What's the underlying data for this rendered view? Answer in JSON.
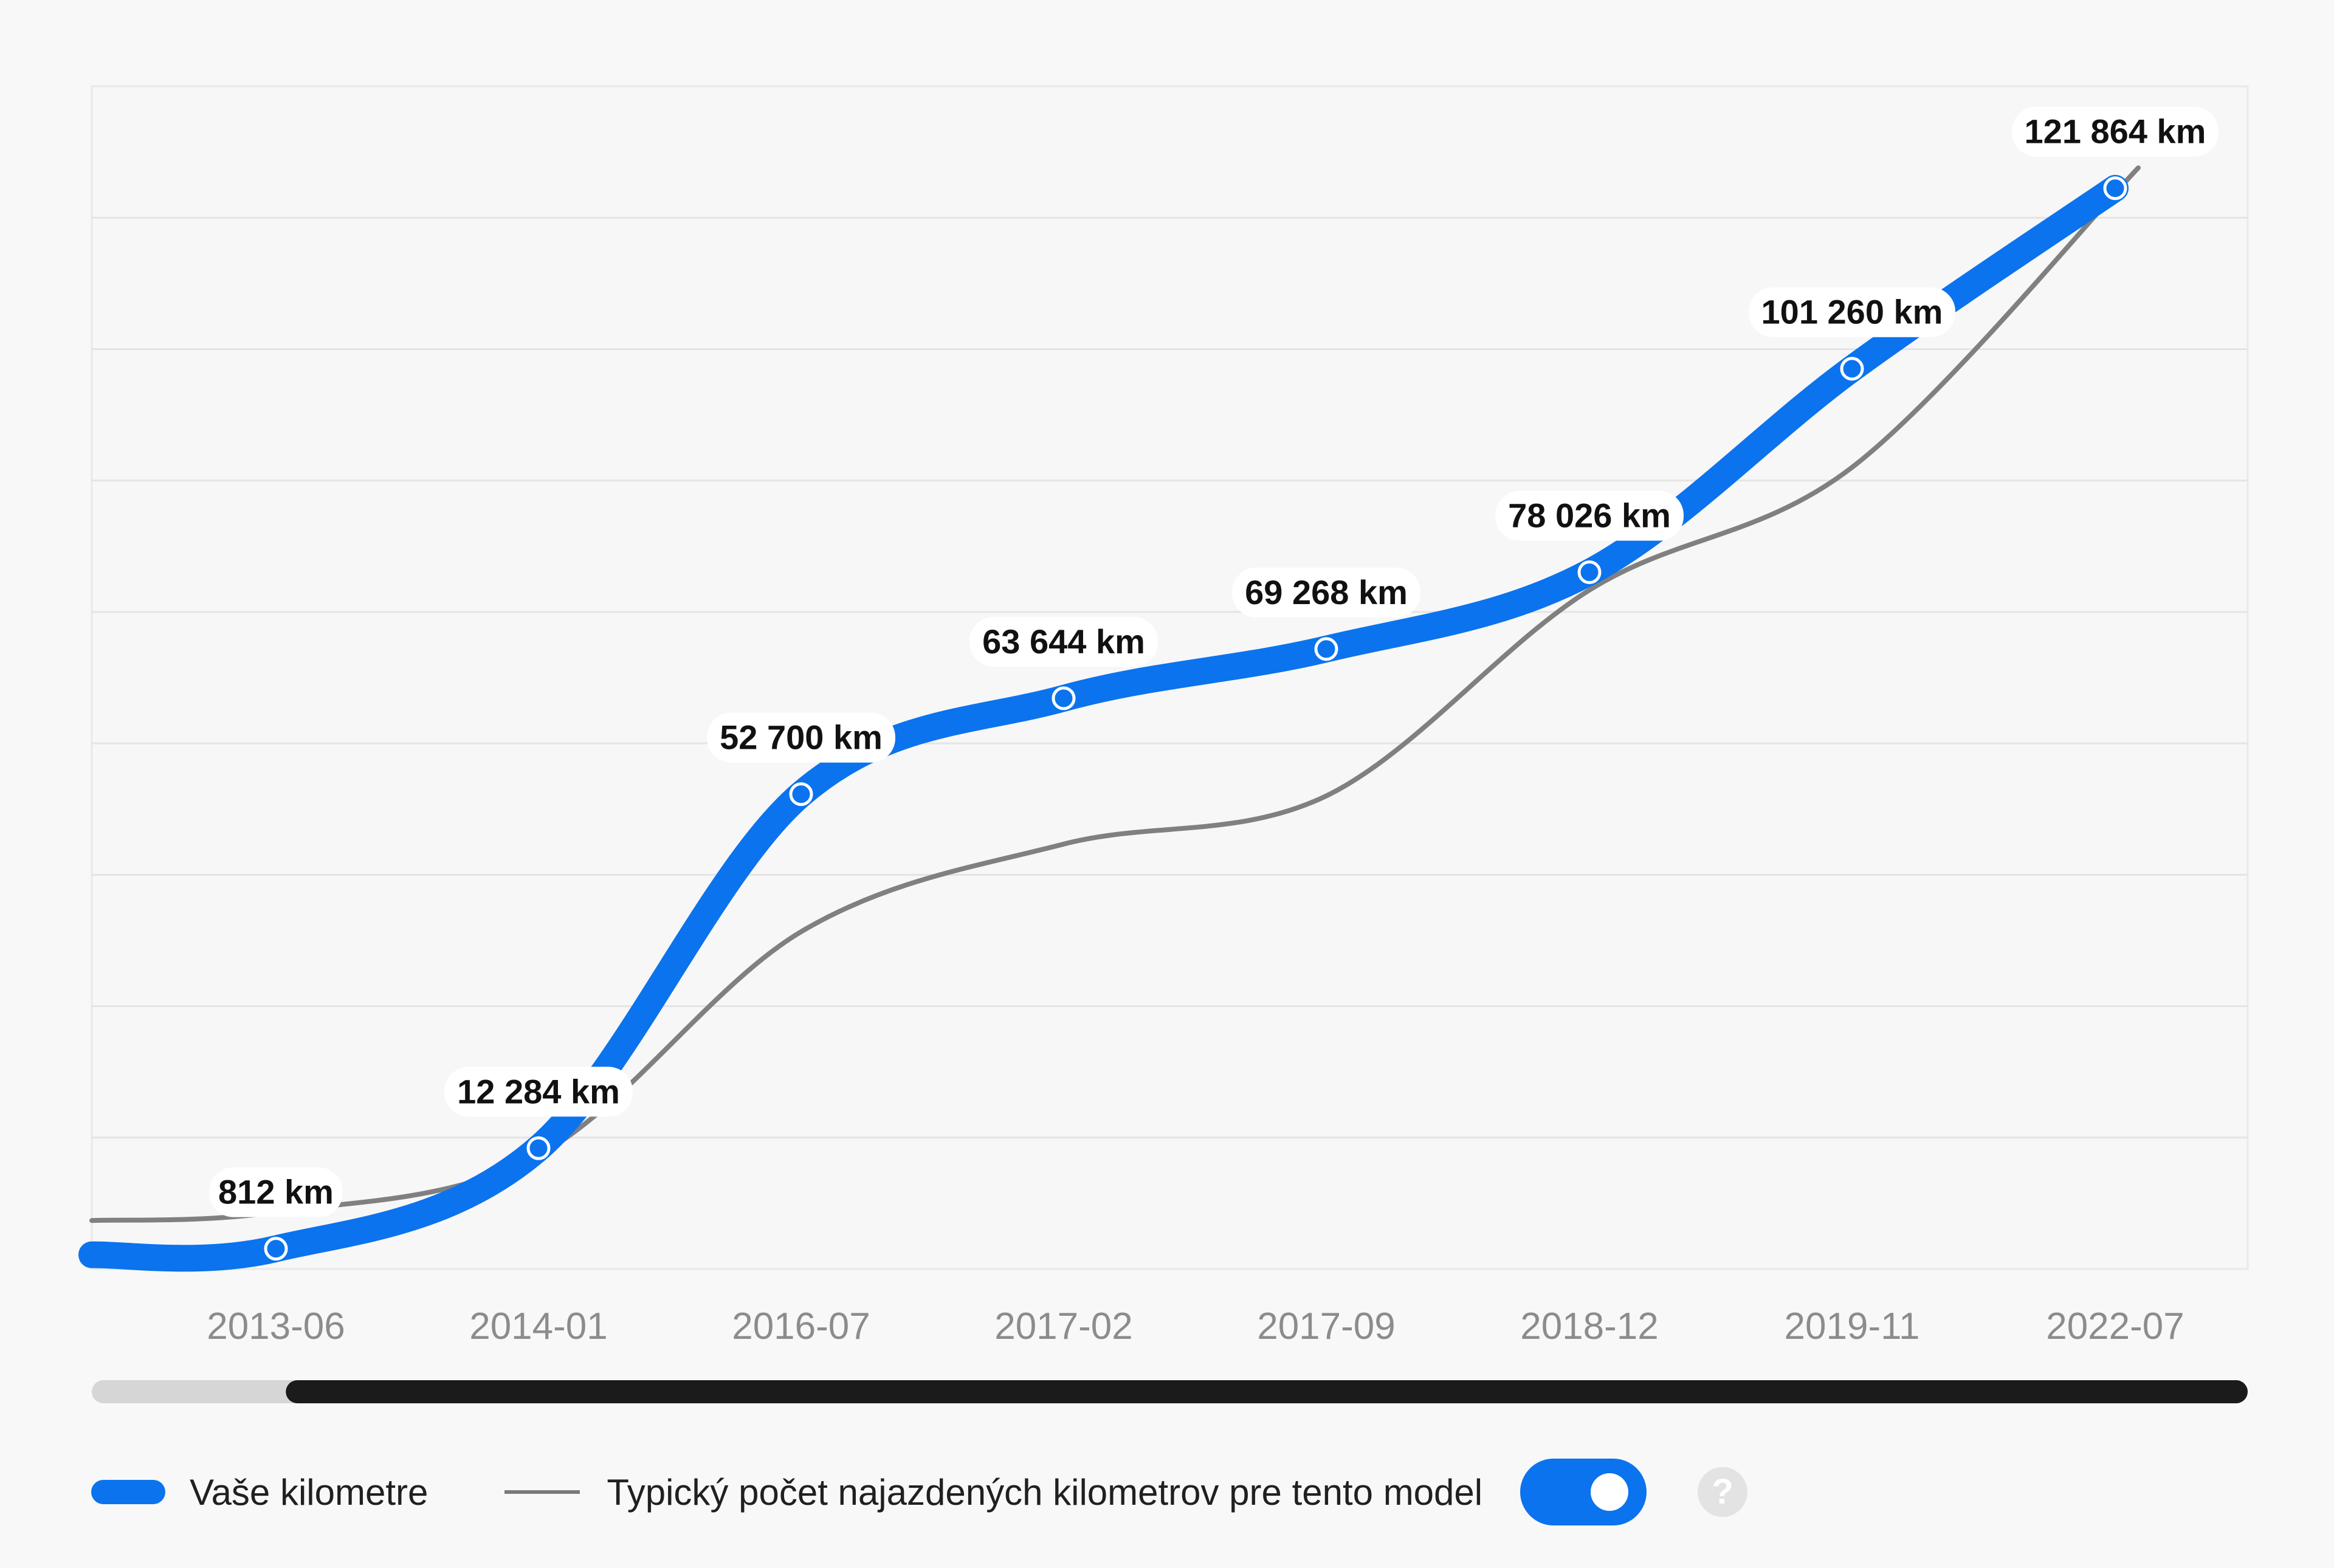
{
  "chart_data": {
    "type": "line",
    "title": "",
    "xlabel": "",
    "ylabel": "",
    "categories": [
      "2013-06",
      "2014-01",
      "2016-07",
      "2017-02",
      "2017-09",
      "2018-12",
      "2019-11",
      "2022-07"
    ],
    "series": [
      {
        "name": "Vaše kilometre",
        "color": "#0b73ee",
        "values": [
          812,
          12284,
          52700,
          63644,
          69268,
          78026,
          101260,
          121864
        ],
        "labels": [
          "812 km",
          "12 284 km",
          "52 700 km",
          "63 644 km",
          "69 268 km",
          "78 026 km",
          "101 260 km",
          "121 864 km"
        ]
      },
      {
        "name": "Typický počet najazdených kilometrov pre tento model",
        "color": "#808080",
        "values": [
          5000,
          11500,
          37000,
          47000,
          52500,
          76000,
          90000,
          123500
        ]
      }
    ],
    "ylim": [
      -1500,
      133500
    ],
    "grid": true,
    "legend": "bottom-left"
  },
  "scrollbar": {
    "visible_range_start": 0.09,
    "visible_range_end": 1.0
  },
  "legend": {
    "mine_label": "Vaše kilometre",
    "typical_label": "Typický počet najazdených kilometrov pre tento model",
    "toggle_on": true,
    "help_symbol": "?"
  }
}
